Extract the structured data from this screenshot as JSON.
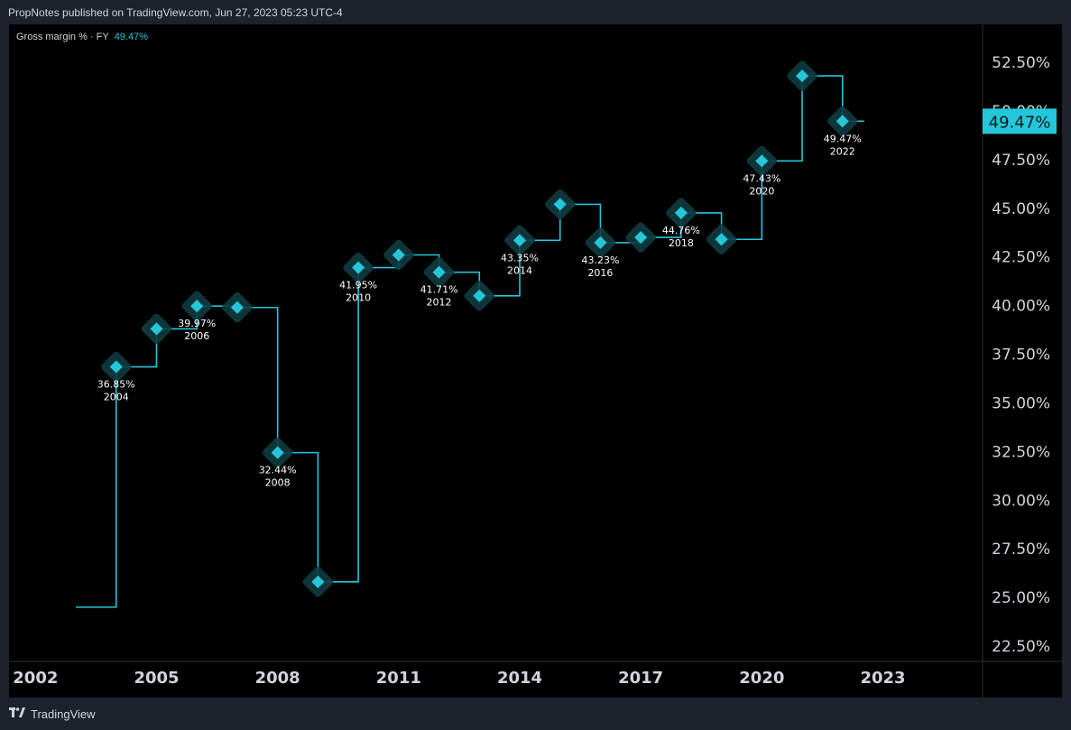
{
  "header": {
    "published_text": "PropNotes published on TradingView.com, Jun 27, 2023 05:23 UTC-4"
  },
  "legend": {
    "label": "Gross margin % · FY",
    "value": "49.47%"
  },
  "footer": {
    "brand": "TradingView",
    "logo_icon": "tradingview-logo-icon"
  },
  "colors": {
    "line": "#26c6da",
    "marker": "#26c6da",
    "halo": "#0f3b40",
    "axis_text": "#d1d4dc",
    "grid_border": "#2a2e39",
    "price_label_bg": "#26c6da"
  },
  "chart_data": {
    "type": "line",
    "style": "step",
    "series": [
      {
        "points": [
          {
            "year": 2004,
            "value": 36.85
          },
          {
            "year": 2005,
            "value": 38.8
          },
          {
            "year": 2006,
            "value": 39.97
          },
          {
            "year": 2007,
            "value": 39.9
          },
          {
            "year": 2008,
            "value": 32.44
          },
          {
            "year": 2009,
            "value": 25.8
          },
          {
            "year": 2010,
            "value": 41.95
          },
          {
            "year": 2011,
            "value": 42.6
          },
          {
            "year": 2012,
            "value": 41.71
          },
          {
            "year": 2013,
            "value": 40.5
          },
          {
            "year": 2014,
            "value": 43.35
          },
          {
            "year": 2015,
            "value": 45.2
          },
          {
            "year": 2016,
            "value": 43.23
          },
          {
            "year": 2017,
            "value": 43.5
          },
          {
            "year": 2018,
            "value": 44.76
          },
          {
            "year": 2019,
            "value": 43.4
          },
          {
            "year": 2020,
            "value": 47.43
          },
          {
            "year": 2021,
            "value": 51.8
          },
          {
            "year": 2022,
            "value": 49.47
          }
        ]
      }
    ],
    "leading_value": 24.5,
    "point_labels": [
      {
        "year": 2004,
        "value_text": "36.85%",
        "year_text": "2004",
        "position": "below"
      },
      {
        "year": 2006,
        "value_text": "39.97%",
        "year_text": "2006",
        "position": "below"
      },
      {
        "year": 2008,
        "value_text": "32.44%",
        "year_text": "2008",
        "position": "below"
      },
      {
        "year": 2010,
        "value_text": "41.95%",
        "year_text": "2010",
        "position": "below"
      },
      {
        "year": 2012,
        "value_text": "41.71%",
        "year_text": "2012",
        "position": "below"
      },
      {
        "year": 2014,
        "value_text": "43.35%",
        "year_text": "2014",
        "position": "below"
      },
      {
        "year": 2016,
        "value_text": "43.23%",
        "year_text": "2016",
        "position": "below"
      },
      {
        "year": 2018,
        "value_text": "44.76%",
        "year_text": "2018",
        "position": "below"
      },
      {
        "year": 2020,
        "value_text": "47.43%",
        "year_text": "2020",
        "position": "below"
      },
      {
        "year": 2022,
        "value_text": "49.47%",
        "year_text": "2022",
        "position": "below"
      }
    ],
    "x_ticks": [
      "2002",
      "2005",
      "2008",
      "2011",
      "2014",
      "2017",
      "2020",
      "2023"
    ],
    "y_ticks": [
      "52.50%",
      "50.00%",
      "47.50%",
      "45.00%",
      "42.50%",
      "40.00%",
      "37.50%",
      "35.00%",
      "32.50%",
      "30.00%",
      "27.50%",
      "25.00%",
      "22.50%"
    ],
    "y_range": [
      22.5,
      52.5
    ],
    "x_range": [
      2002,
      2023
    ],
    "last_value_label": "49.47%",
    "grid": false
  }
}
